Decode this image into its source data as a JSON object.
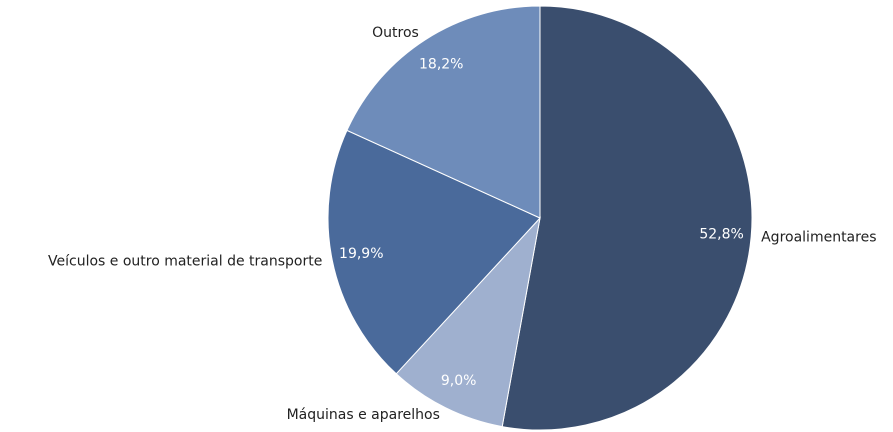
{
  "chart_data": {
    "type": "pie",
    "categories": [
      "Agroalimentares",
      "Máquinas e aparelhos",
      "Veículos e outro material de transporte",
      "Outros"
    ],
    "values": [
      52.8,
      9.0,
      19.9,
      18.2
    ],
    "value_labels": [
      "52,8%",
      "9,0%",
      "19,9%",
      "18,2%"
    ],
    "colors": [
      "#3a4e6e",
      "#9fb0cf",
      "#4a6a9b",
      "#6e8cba"
    ]
  }
}
